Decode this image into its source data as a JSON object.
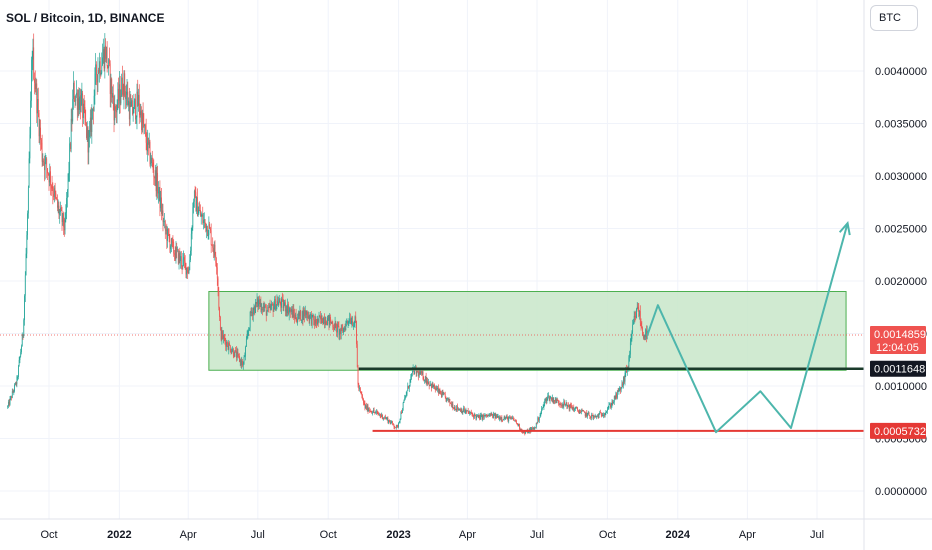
{
  "title": "SOL / Bitcoin, 1D, BINANCE",
  "currency": "BTC",
  "colors": {
    "up": "#26a69a",
    "down": "#ef5350",
    "zone_fill": "#c8e6c9",
    "zone_border": "#4caf50",
    "support_line": "#e53935",
    "resistance_line": "#1b3b2b",
    "projection": "#4db6ac",
    "price_tag": "#ef5350"
  },
  "price_tags": {
    "current_price": "0.0014859",
    "countdown": "12:04:05",
    "level_line": "0.0011648",
    "support": "0.0005732"
  },
  "chart_data": {
    "type": "candlestick",
    "symbol": "SOL / Bitcoin",
    "interval": "1D",
    "exchange": "BINANCE",
    "y_axis": {
      "ticks": [
        "0.0040000",
        "0.0035000",
        "0.0030000",
        "0.0025000",
        "0.0020000",
        "0.0015000",
        "0.0010000",
        "0.0005000",
        "0.0000000"
      ],
      "range": [
        -0.00042,
        0.00475
      ]
    },
    "x_axis": {
      "ticks": [
        {
          "label": "Oct",
          "date": "2021-10-01",
          "bold": false
        },
        {
          "label": "2022",
          "date": "2022-01-01",
          "bold": true
        },
        {
          "label": "Apr",
          "date": "2022-04-01",
          "bold": false
        },
        {
          "label": "Jul",
          "date": "2022-07-01",
          "bold": false
        },
        {
          "label": "Oct",
          "date": "2022-10-01",
          "bold": false
        },
        {
          "label": "2023",
          "date": "2023-01-01",
          "bold": true
        },
        {
          "label": "Apr",
          "date": "2023-04-01",
          "bold": false
        },
        {
          "label": "Jul",
          "date": "2023-07-01",
          "bold": false
        },
        {
          "label": "Oct",
          "date": "2023-10-01",
          "bold": false
        },
        {
          "label": "2024",
          "date": "2024-01-01",
          "bold": true
        },
        {
          "label": "Apr",
          "date": "2024-04-01",
          "bold": false
        },
        {
          "label": "Jul",
          "date": "2024-07-01",
          "bold": false
        }
      ]
    },
    "price_path": [
      [
        "2021-08-08",
        0.0008
      ],
      [
        "2021-08-20",
        0.00105
      ],
      [
        "2021-08-28",
        0.0015
      ],
      [
        "2021-09-04",
        0.0028
      ],
      [
        "2021-09-09",
        0.0042
      ],
      [
        "2021-09-14",
        0.0038
      ],
      [
        "2021-09-22",
        0.0032
      ],
      [
        "2021-10-02",
        0.003
      ],
      [
        "2021-10-12",
        0.0027
      ],
      [
        "2021-10-22",
        0.0025
      ],
      [
        "2021-11-02",
        0.0038
      ],
      [
        "2021-11-12",
        0.0037
      ],
      [
        "2021-11-22",
        0.0033
      ],
      [
        "2021-12-02",
        0.004
      ],
      [
        "2021-12-14",
        0.0042
      ],
      [
        "2021-12-26",
        0.0036
      ],
      [
        "2022-01-06",
        0.0039
      ],
      [
        "2022-01-16",
        0.0036
      ],
      [
        "2022-01-26",
        0.0037
      ],
      [
        "2022-02-06",
        0.0033
      ],
      [
        "2022-02-20",
        0.0029
      ],
      [
        "2022-03-01",
        0.0025
      ],
      [
        "2022-03-12",
        0.0023
      ],
      [
        "2022-03-22",
        0.0022
      ],
      [
        "2022-04-02",
        0.0021
      ],
      [
        "2022-04-08",
        0.0028
      ],
      [
        "2022-04-18",
        0.0026
      ],
      [
        "2022-04-28",
        0.0025
      ],
      [
        "2022-05-08",
        0.0022
      ],
      [
        "2022-05-13",
        0.0015
      ],
      [
        "2022-05-22",
        0.0014
      ],
      [
        "2022-06-02",
        0.0013
      ],
      [
        "2022-06-12",
        0.0012
      ],
      [
        "2022-06-22",
        0.0017
      ],
      [
        "2022-07-02",
        0.0018
      ],
      [
        "2022-07-14",
        0.0017
      ],
      [
        "2022-07-26",
        0.0018
      ],
      [
        "2022-08-08",
        0.00175
      ],
      [
        "2022-08-20",
        0.00165
      ],
      [
        "2022-09-02",
        0.0017
      ],
      [
        "2022-09-14",
        0.0016
      ],
      [
        "2022-09-26",
        0.00165
      ],
      [
        "2022-10-06",
        0.0016
      ],
      [
        "2022-10-18",
        0.0015
      ],
      [
        "2022-10-28",
        0.00165
      ],
      [
        "2022-11-06",
        0.0016
      ],
      [
        "2022-11-09",
        0.001
      ],
      [
        "2022-11-18",
        0.0008
      ],
      [
        "2022-11-30",
        0.00075
      ],
      [
        "2022-12-14",
        0.0007
      ],
      [
        "2022-12-30",
        0.0006
      ],
      [
        "2023-01-10",
        0.0009
      ],
      [
        "2023-01-20",
        0.00115
      ],
      [
        "2023-02-01",
        0.0011
      ],
      [
        "2023-02-14",
        0.001
      ],
      [
        "2023-03-01",
        0.0009
      ],
      [
        "2023-03-15",
        0.0008
      ],
      [
        "2023-04-01",
        0.00075
      ],
      [
        "2023-04-15",
        0.0007
      ],
      [
        "2023-05-01",
        0.00072
      ],
      [
        "2023-05-15",
        0.0007
      ],
      [
        "2023-06-01",
        0.00068
      ],
      [
        "2023-06-14",
        0.00055
      ],
      [
        "2023-06-28",
        0.0006
      ],
      [
        "2023-07-14",
        0.0009
      ],
      [
        "2023-07-28",
        0.00085
      ],
      [
        "2023-08-14",
        0.0008
      ],
      [
        "2023-08-28",
        0.00075
      ],
      [
        "2023-09-14",
        0.0007
      ],
      [
        "2023-09-28",
        0.00075
      ],
      [
        "2023-10-08",
        0.00085
      ],
      [
        "2023-10-20",
        0.001
      ],
      [
        "2023-10-28",
        0.0012
      ],
      [
        "2023-11-04",
        0.0016
      ],
      [
        "2023-11-10",
        0.00175
      ],
      [
        "2023-11-16",
        0.0015
      ],
      [
        "2023-11-22",
        0.00149
      ]
    ],
    "annotations": {
      "zone": {
        "start": "2022-04-28",
        "end": "2024-08-08",
        "low": 0.00115,
        "high": 0.0019
      },
      "black_line": {
        "start": "2022-11-10",
        "end": "2024-08-08",
        "value": 0.0011648
      },
      "red_line": {
        "start": "2022-11-28",
        "end": "2024-08-08",
        "value": 0.0005732
      },
      "projection": [
        [
          "2023-11-22",
          0.00148
        ],
        [
          "2023-12-06",
          0.00177
        ],
        [
          "2024-02-20",
          0.00056
        ],
        [
          "2024-04-18",
          0.00095
        ],
        [
          "2024-05-28",
          0.0006
        ],
        [
          "2024-08-10",
          0.00255
        ]
      ]
    }
  }
}
